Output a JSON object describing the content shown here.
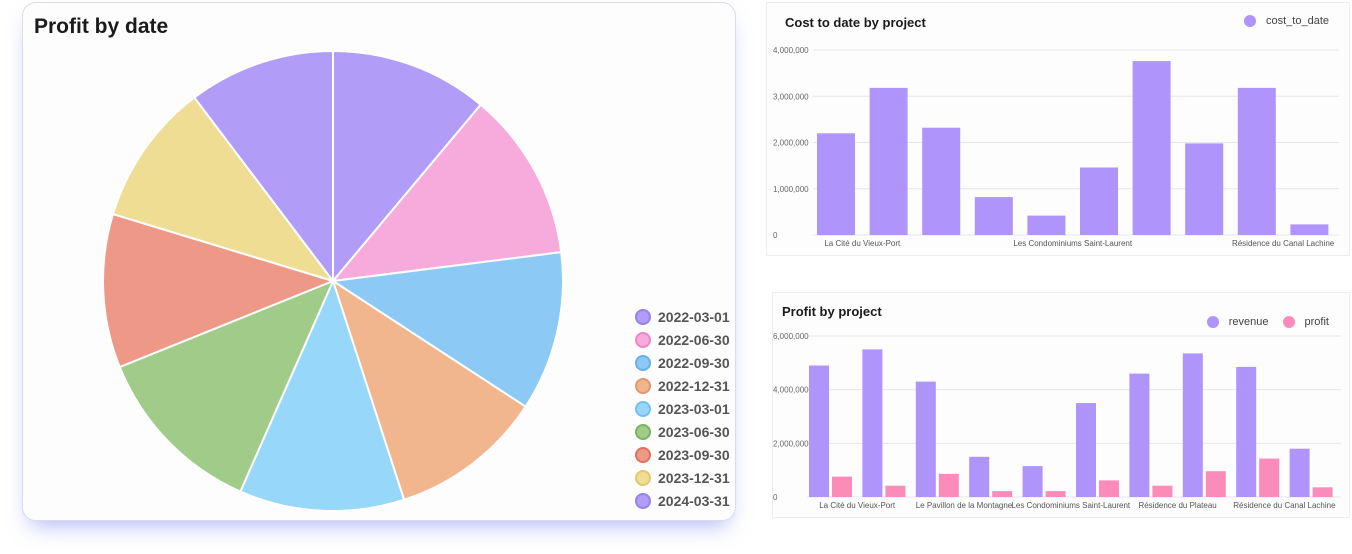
{
  "pie_card": {
    "title": "Profit by date"
  },
  "cost_card": {
    "title": "Cost to date by project"
  },
  "profit_card": {
    "title": "Profit by project"
  },
  "chart_data": [
    {
      "type": "pie",
      "title": "Profit by date",
      "legend_position": "bottom-right",
      "categories": [
        "2022-03-01",
        "2022-06-30",
        "2022-09-30",
        "2022-12-31",
        "2023-03-01",
        "2023-06-30",
        "2023-09-30",
        "2023-12-31",
        "2024-03-31"
      ],
      "values": [
        11.1,
        11.9,
        11.2,
        10.8,
        11.6,
        12.3,
        10.8,
        10.0,
        10.3
      ],
      "colors": [
        "#b19cf7",
        "#f7aadc",
        "#8ccaf5",
        "#f1b68e",
        "#97d7fa",
        "#a0cb88",
        "#ee9987",
        "#efdd94",
        "#b19cf7"
      ],
      "legend_borders": [
        "#9580ee",
        "#ec88c4",
        "#66b0e6",
        "#e2966c",
        "#72bff0",
        "#7cb265",
        "#e0705c",
        "#e4c76a",
        "#9580ee"
      ]
    },
    {
      "type": "bar",
      "title": "Cost to date by project",
      "categories": [
        "La Cité du Vieux-Port",
        "",
        "",
        "",
        "Les Condominiums Saint-Laurent",
        "",
        "",
        "",
        "Résidence du Canal Lachine",
        ""
      ],
      "series": [
        {
          "name": "cost_to_date",
          "color": "#ae94fb",
          "values": [
            2200000,
            3180000,
            2320000,
            820000,
            420000,
            1460000,
            3760000,
            1980000,
            3180000,
            230000
          ]
        }
      ],
      "ylim": [
        0,
        4000000
      ],
      "yticks": [
        "0",
        "1,000,000",
        "2,000,000",
        "3,000,000",
        "4,000,000"
      ],
      "grid": true,
      "legend_position": "top-right"
    },
    {
      "type": "bar",
      "title": "Profit by project",
      "categories": [
        "La Cité du Vieux-Port",
        "",
        "Le Pavillon de la Montagne",
        "",
        "Les Condominiums Saint-Laurent",
        "",
        "Résidence du Plateau",
        "",
        "Résidence du Canal Lachine",
        ""
      ],
      "series": [
        {
          "name": "revenue",
          "color": "#ae94fb",
          "values": [
            4900000,
            5500000,
            4300000,
            1500000,
            1150000,
            3500000,
            4600000,
            5350000,
            4850000,
            1800000
          ]
        },
        {
          "name": "profit",
          "color": "#fb8cb9",
          "values": [
            760000,
            420000,
            860000,
            220000,
            220000,
            620000,
            420000,
            960000,
            1430000,
            360000
          ]
        }
      ],
      "ylim": [
        0,
        6000000
      ],
      "yticks": [
        "0",
        "2,000,000",
        "4,000,000",
        "6,000,000"
      ],
      "grid": true,
      "legend_position": "top-right"
    }
  ]
}
